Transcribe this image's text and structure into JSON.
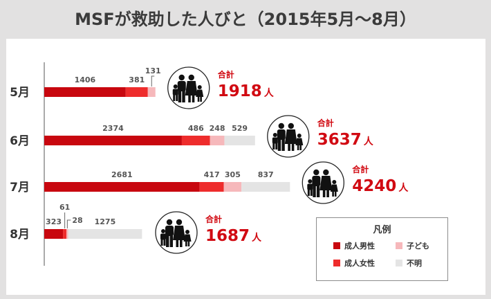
{
  "title": "MSFが救助した人びと（2015年5月～8月）",
  "colors": {
    "adult_men": "#c8070f",
    "adult_women": "#ee2c2c",
    "children": "#f6b8bb",
    "unknown": "#e4e4e4",
    "total_text": "#d10a12",
    "month_text": "#333333",
    "value_text": "#555555"
  },
  "legend": {
    "title": "凡例",
    "items": [
      {
        "label": "成人男性",
        "color": "#c8070f"
      },
      {
        "label": "子ども",
        "color": "#f6b8bb"
      },
      {
        "label": "成人女性",
        "color": "#ee2c2c"
      },
      {
        "label": "不明",
        "color": "#e4e4e4"
      }
    ]
  },
  "icons": [
    "family-icon"
  ],
  "chart_data": {
    "type": "bar",
    "orientation": "horizontal",
    "stacked": true,
    "title": "MSFが救助した人びと（2015年5月～8月）",
    "categories": [
      "5月",
      "6月",
      "7月",
      "8月"
    ],
    "series": [
      {
        "name": "成人男性",
        "values": [
          1406,
          2374,
          2681,
          323
        ]
      },
      {
        "name": "成人女性",
        "values": [
          381,
          486,
          417,
          61
        ]
      },
      {
        "name": "子ども",
        "values": [
          131,
          248,
          305,
          28
        ]
      },
      {
        "name": "不明",
        "values": [
          0,
          529,
          837,
          1275
        ]
      }
    ],
    "totals_label": "合計",
    "totals_unit": "人",
    "totals": [
      1918,
      3637,
      4240,
      1687
    ],
    "legend_position": "bottom-right",
    "grid": false
  }
}
